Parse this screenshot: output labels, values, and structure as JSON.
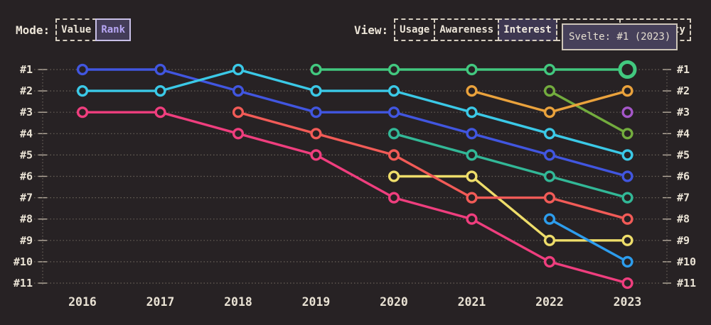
{
  "colors": {
    "background": "#272224",
    "text": "#e9e2d4",
    "grid": "#696159",
    "tick": "#b5ab9d",
    "control_border": "#d6cec0",
    "mode_selected_border": "#c9c0e8",
    "mode_selected_bg": "#433c58",
    "mode_selected_text": "#b7a6f4",
    "view_selected_bg": "#3d3751",
    "tooltip_bg": "#46405a"
  },
  "controls": {
    "mode": {
      "label": "Mode:",
      "options": [
        {
          "label": "Value",
          "selected": false
        },
        {
          "label": "Rank",
          "selected": true
        }
      ]
    },
    "view": {
      "label": "View:",
      "options": [
        {
          "label": "Usage",
          "selected": false
        },
        {
          "label": "Awareness",
          "selected": false
        },
        {
          "label": "Interest",
          "selected": true
        },
        {
          "label": "Retention",
          "selected": false
        },
        {
          "label": "Positivity",
          "selected": false
        }
      ]
    }
  },
  "tooltip": {
    "text": "Svelte: #1 (2023)"
  },
  "chart_data": {
    "type": "line",
    "subtype": "bump-chart-rank-over-time",
    "title": "",
    "xlabel": "",
    "ylabel": "",
    "x": [
      2016,
      2017,
      2018,
      2019,
      2020,
      2021,
      2022,
      2023
    ],
    "x_labels": [
      "2016",
      "2017",
      "2018",
      "2019",
      "2020",
      "2021",
      "2022",
      "2023"
    ],
    "y_tick_labels": [
      "#1",
      "#2",
      "#3",
      "#4",
      "#5",
      "#6",
      "#7",
      "#8",
      "#9",
      "#10",
      "#11"
    ],
    "ylim": [
      1,
      11
    ],
    "y_inverted": true,
    "grid": "dotted-horizontal",
    "legend": "none",
    "series": [
      {
        "name": "yellow",
        "color": "#eedd6a",
        "values": [
          null,
          null,
          null,
          null,
          6,
          6,
          9,
          9
        ]
      },
      {
        "name": "salmon",
        "color": "#f25b57",
        "values": [
          null,
          null,
          3,
          4,
          5,
          7,
          7,
          8
        ]
      },
      {
        "name": "sky-blue",
        "color": "#2d9ded",
        "values": [
          null,
          null,
          null,
          null,
          null,
          null,
          8,
          10
        ]
      },
      {
        "name": "teal",
        "color": "#32b897",
        "values": [
          null,
          null,
          null,
          null,
          4,
          5,
          6,
          7
        ]
      },
      {
        "name": "pink",
        "color": "#ef3e7e",
        "values": [
          3,
          3,
          4,
          5,
          7,
          8,
          10,
          11
        ]
      },
      {
        "name": "apple-green",
        "color": "#73ac3e",
        "values": [
          null,
          null,
          null,
          null,
          null,
          null,
          2,
          4
        ]
      },
      {
        "name": "amber",
        "color": "#eaa23c",
        "values": [
          null,
          null,
          null,
          null,
          null,
          2,
          3,
          2
        ]
      },
      {
        "name": "royal-blue",
        "color": "#4156e0",
        "values": [
          1,
          1,
          2,
          3,
          3,
          4,
          5,
          6
        ]
      },
      {
        "name": "cyan",
        "color": "#3bc9e7",
        "values": [
          2,
          2,
          1,
          2,
          2,
          3,
          4,
          5
        ]
      },
      {
        "name": "purple",
        "color": "#a557c9",
        "values": [
          null,
          null,
          null,
          null,
          null,
          null,
          null,
          3
        ]
      },
      {
        "name": "Svelte",
        "color": "#42c87f",
        "values": [
          null,
          null,
          null,
          1,
          1,
          1,
          1,
          1
        ],
        "highlight_last": true
      }
    ],
    "highlight": {
      "series": "Svelte",
      "year": 2023,
      "rank": 1,
      "tooltip": "Svelte: #1 (2023)"
    }
  }
}
